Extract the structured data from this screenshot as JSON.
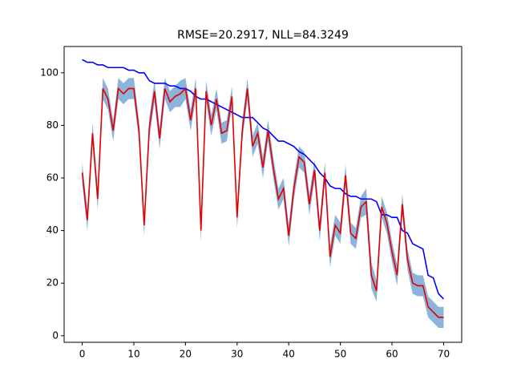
{
  "chart_data": {
    "type": "line",
    "title": "RMSE=20.2917, NLL=84.3249",
    "x": [
      0,
      1,
      2,
      3,
      4,
      5,
      6,
      7,
      8,
      9,
      10,
      11,
      12,
      13,
      14,
      15,
      16,
      17,
      18,
      19,
      20,
      21,
      22,
      23,
      24,
      25,
      26,
      27,
      28,
      29,
      30,
      31,
      32,
      33,
      34,
      35,
      36,
      37,
      38,
      39,
      40,
      41,
      42,
      43,
      44,
      45,
      46,
      47,
      48,
      49,
      50,
      51,
      52,
      53,
      54,
      55,
      56,
      57,
      58,
      59,
      60,
      61,
      62,
      63,
      64,
      65,
      66,
      67,
      68,
      69,
      70
    ],
    "series": [
      {
        "color": "#0000ff",
        "values": [
          105,
          104,
          104,
          103,
          103,
          102,
          102,
          102,
          102,
          101,
          101,
          100,
          100,
          97,
          96,
          96,
          96,
          95,
          95,
          94,
          94,
          93,
          91,
          90,
          90,
          89,
          88,
          87,
          86,
          85,
          84,
          83,
          83,
          83,
          81,
          79,
          78,
          76,
          74,
          74,
          73,
          72,
          70,
          69,
          67,
          65,
          62,
          60,
          57,
          56,
          56,
          54,
          53,
          53,
          52,
          52,
          52,
          51,
          46,
          46,
          45,
          45,
          40,
          39,
          35,
          34,
          33,
          23,
          22,
          16,
          14
        ]
      },
      {
        "color": "#e00000",
        "band_color": "#6699cc",
        "values": [
          62,
          44,
          77,
          52,
          94,
          90,
          78,
          94,
          92,
          94,
          94,
          78,
          42,
          79,
          93,
          75,
          94,
          89,
          91,
          92,
          94,
          82,
          94,
          40,
          93,
          80,
          90,
          77,
          78,
          91,
          45,
          78,
          94,
          72,
          77,
          64,
          78,
          64,
          52,
          56,
          38,
          56,
          68,
          66,
          50,
          63,
          40,
          62,
          30,
          42,
          39,
          61,
          39,
          37,
          49,
          51,
          23,
          17,
          49,
          43,
          32,
          23,
          50,
          29,
          20,
          19,
          19,
          11,
          9,
          7,
          7
        ],
        "error": [
          4,
          4,
          4,
          4,
          4,
          4,
          4,
          4,
          4,
          4,
          4,
          4,
          4,
          4,
          4,
          4,
          4,
          4,
          4,
          5,
          4,
          4,
          4,
          4,
          4,
          4,
          4,
          4,
          4,
          4,
          4,
          4,
          4,
          4,
          4,
          4,
          4,
          4,
          4,
          4,
          4,
          4,
          4,
          4,
          4,
          4,
          4,
          4,
          4,
          4,
          4,
          4,
          4,
          4,
          4,
          5,
          5,
          4,
          4,
          4,
          4,
          4,
          4,
          4,
          4,
          4,
          4,
          4,
          4,
          4,
          4
        ]
      }
    ],
    "xlim": [
      -3.5,
      73.5
    ],
    "ylim": [
      -2.5,
      110
    ],
    "xticks": [
      0,
      10,
      20,
      30,
      40,
      50,
      60,
      70
    ],
    "yticks": [
      0,
      20,
      40,
      60,
      80,
      100
    ]
  }
}
